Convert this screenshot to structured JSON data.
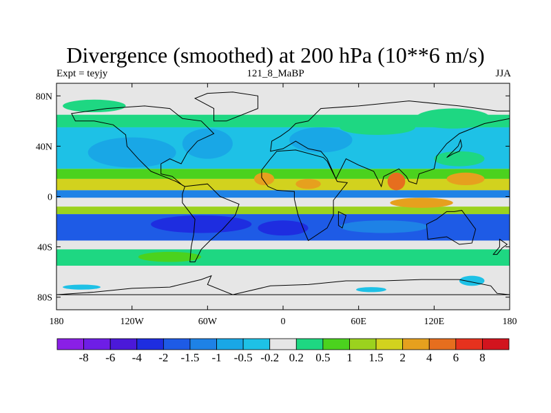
{
  "title": "Divergence (smoothed) at 200 hPa (10**6 m/s)",
  "subtitle_left": "Expt = teyjy",
  "subtitle_center": "121_8_MaBP",
  "subtitle_right": "JJA",
  "colors": {
    "land_outline": "#000000",
    "neutral": "#e6e6e6",
    "bins": [
      "#8a1fe6",
      "#6e1ee6",
      "#4b19d9",
      "#1e2de0",
      "#1e5be6",
      "#1e82e6",
      "#19a7e6",
      "#1ec1e6",
      "#e6e6e6",
      "#1ed782",
      "#4bd21e",
      "#9bd21e",
      "#d2d21e",
      "#e6a01e",
      "#e66e1e",
      "#e6321e",
      "#d2141e"
    ]
  },
  "chart_data": {
    "type": "heatmap",
    "variable": "Divergence (smoothed)",
    "level": "200 hPa",
    "units": "10**6 m/s",
    "season": "JJA",
    "experiment": "teyjy",
    "dataset": "121_8_MaBP",
    "x_ticks": [
      "180",
      "120W",
      "60W",
      "0",
      "60E",
      "120E",
      "180"
    ],
    "x_tick_values": [
      -180,
      -120,
      -60,
      0,
      60,
      120,
      180
    ],
    "y_ticks": [
      "80N",
      "40N",
      "0",
      "40S",
      "80S"
    ],
    "y_tick_values": [
      80,
      40,
      0,
      -40,
      -80
    ],
    "xlim": [
      -180,
      180
    ],
    "ylim": [
      -90,
      90
    ],
    "colorbar_levels": [
      "-8",
      "-6",
      "-4",
      "-2",
      "-1.5",
      "-1",
      "-0.5",
      "-0.2",
      "0.2",
      "0.5",
      "1",
      "1.5",
      "2",
      "4",
      "6",
      "8"
    ],
    "zonal_bands": [
      {
        "lat_from": 90,
        "lat_to": 65,
        "bin": 8
      },
      {
        "lat_from": 65,
        "lat_to": 55,
        "bin": 9
      },
      {
        "lat_from": 55,
        "lat_to": 22,
        "bin": 7
      },
      {
        "lat_from": 22,
        "lat_to": 14,
        "bin": 10
      },
      {
        "lat_from": 14,
        "lat_to": 5,
        "bin": 12
      },
      {
        "lat_from": 5,
        "lat_to": -1,
        "bin": 5
      },
      {
        "lat_from": -1,
        "lat_to": -8,
        "bin": 8
      },
      {
        "lat_from": -8,
        "lat_to": -14,
        "bin": 11
      },
      {
        "lat_from": -14,
        "lat_to": -35,
        "bin": 4
      },
      {
        "lat_from": -35,
        "lat_to": -42,
        "bin": 8
      },
      {
        "lat_from": -42,
        "lat_to": -55,
        "bin": 9
      },
      {
        "lat_from": -55,
        "lat_to": -90,
        "bin": 8
      }
    ],
    "blobs": [
      {
        "lon": -150,
        "lat": 72,
        "rlon": 25,
        "rlat": 5,
        "bin": 9
      },
      {
        "lon": 135,
        "lat": 62,
        "rlon": 30,
        "rlat": 8,
        "bin": 9
      },
      {
        "lon": 75,
        "lat": 55,
        "rlon": 30,
        "rlat": 6,
        "bin": 9
      },
      {
        "lon": -120,
        "lat": 35,
        "rlon": 35,
        "rlat": 12,
        "bin": 6
      },
      {
        "lon": -60,
        "lat": 42,
        "rlon": 20,
        "rlat": 12,
        "bin": 6
      },
      {
        "lon": 30,
        "lat": 45,
        "rlon": 25,
        "rlat": 10,
        "bin": 6
      },
      {
        "lon": 140,
        "lat": 30,
        "rlon": 20,
        "rlat": 6,
        "bin": 9
      },
      {
        "lon": -15,
        "lat": 14,
        "rlon": 8,
        "rlat": 5,
        "bin": 13
      },
      {
        "lon": 90,
        "lat": 12,
        "rlon": 7,
        "rlat": 7,
        "bin": 14
      },
      {
        "lon": 145,
        "lat": 14,
        "rlon": 15,
        "rlat": 5,
        "bin": 13
      },
      {
        "lon": 20,
        "lat": 10,
        "rlon": 10,
        "rlat": 4,
        "bin": 13
      },
      {
        "lon": 110,
        "lat": -5,
        "rlon": 25,
        "rlat": 4,
        "bin": 13
      },
      {
        "lon": -65,
        "lat": -22,
        "rlon": 40,
        "rlat": 7,
        "bin": 3
      },
      {
        "lon": 0,
        "lat": -25,
        "rlon": 20,
        "rlat": 6,
        "bin": 3
      },
      {
        "lon": 80,
        "lat": -24,
        "rlon": 35,
        "rlat": 5,
        "bin": 5
      },
      {
        "lon": -160,
        "lat": -72,
        "rlon": 15,
        "rlat": 2,
        "bin": 7
      },
      {
        "lon": 150,
        "lat": -67,
        "rlon": 10,
        "rlat": 4,
        "bin": 7
      },
      {
        "lon": 70,
        "lat": -74,
        "rlon": 12,
        "rlat": 2,
        "bin": 7
      },
      {
        "lon": -90,
        "lat": -48,
        "rlon": 25,
        "rlat": 4,
        "bin": 10
      }
    ]
  }
}
